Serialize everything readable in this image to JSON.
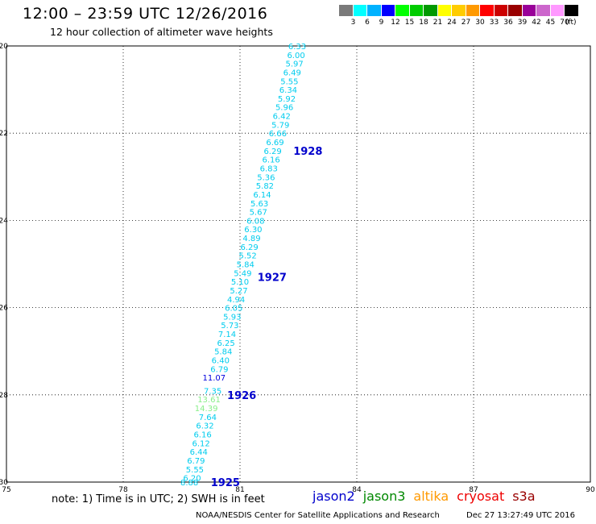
{
  "header": {
    "title": "12:00 – 23:59 UTC 12/26/2016",
    "subtitle": "12 hour collection of altimeter wave heights"
  },
  "colorbar": {
    "colors": [
      "#7a7a7a",
      "#00ffff",
      "#00b2ff",
      "#0000ff",
      "#00ff00",
      "#00cc00",
      "#009900",
      "#ffff00",
      "#ffcc00",
      "#ff9900",
      "#ff0000",
      "#cc0000",
      "#990000",
      "#990099",
      "#cc66cc",
      "#ff99ff",
      "#000000"
    ],
    "labels": [
      "3",
      "6",
      "9",
      "12",
      "15",
      "18",
      "21",
      "24",
      "27",
      "30",
      "33",
      "36",
      "39",
      "42",
      "45",
      "70"
    ],
    "unit": "(ft)"
  },
  "chart_data": {
    "type": "scatter",
    "xlim": [
      75,
      90
    ],
    "ylim": [
      -30,
      -20
    ],
    "x_ticks": [
      "75",
      "78",
      "81",
      "84",
      "87",
      "90"
    ],
    "y_ticks": [
      "-20",
      "-22",
      "-24",
      "-26",
      "-28",
      "-30"
    ],
    "grid": true,
    "points": [
      {
        "x": 82.7,
        "y": -20.0,
        "label": "6.33",
        "color": "#00ccee"
      },
      {
        "x": 82.67,
        "y": -20.2,
        "label": "6.00",
        "color": "#00ccee"
      },
      {
        "x": 82.63,
        "y": -20.4,
        "label": "5.97",
        "color": "#00ccee"
      },
      {
        "x": 82.57,
        "y": -20.6,
        "label": "6.49",
        "color": "#00ccee"
      },
      {
        "x": 82.5,
        "y": -20.8,
        "label": "5.55",
        "color": "#00ccee"
      },
      {
        "x": 82.47,
        "y": -21.0,
        "label": "6.34",
        "color": "#00ccee"
      },
      {
        "x": 82.43,
        "y": -21.2,
        "label": "5.92",
        "color": "#00ccee"
      },
      {
        "x": 82.37,
        "y": -21.4,
        "label": "5.96",
        "color": "#00ccee"
      },
      {
        "x": 82.3,
        "y": -21.6,
        "label": "6.42",
        "color": "#00ccee"
      },
      {
        "x": 82.27,
        "y": -21.8,
        "label": "5.79",
        "color": "#00ccee"
      },
      {
        "x": 82.2,
        "y": -22.0,
        "label": "6.66",
        "color": "#00ccee"
      },
      {
        "x": 82.13,
        "y": -22.2,
        "label": "6.69",
        "color": "#00ccee"
      },
      {
        "x": 82.07,
        "y": -22.4,
        "label": "6.29",
        "color": "#00ccee"
      },
      {
        "x": 82.03,
        "y": -22.6,
        "label": "6.16",
        "color": "#00ccee"
      },
      {
        "x": 81.97,
        "y": -22.8,
        "label": "6.83",
        "color": "#00ccee"
      },
      {
        "x": 81.9,
        "y": -23.0,
        "label": "5.36",
        "color": "#00ccee"
      },
      {
        "x": 81.87,
        "y": -23.2,
        "label": "5.82",
        "color": "#00ccee"
      },
      {
        "x": 81.8,
        "y": -23.4,
        "label": "6.14",
        "color": "#00ccee"
      },
      {
        "x": 81.73,
        "y": -23.6,
        "label": "5.63",
        "color": "#00ccee"
      },
      {
        "x": 81.7,
        "y": -23.8,
        "label": "5.67",
        "color": "#00ccee"
      },
      {
        "x": 81.63,
        "y": -24.0,
        "label": "6.08",
        "color": "#00ccee"
      },
      {
        "x": 81.57,
        "y": -24.2,
        "label": "6.30",
        "color": "#00ccee"
      },
      {
        "x": 81.53,
        "y": -24.4,
        "label": "4.89",
        "color": "#00ccee"
      },
      {
        "x": 81.47,
        "y": -24.6,
        "label": "6.29",
        "color": "#00ccee"
      },
      {
        "x": 81.43,
        "y": -24.8,
        "label": "5.52",
        "color": "#00ccee"
      },
      {
        "x": 81.37,
        "y": -25.0,
        "label": "5.84",
        "color": "#00ccee"
      },
      {
        "x": 81.3,
        "y": -25.2,
        "label": "5.49",
        "color": "#00ccee"
      },
      {
        "x": 81.23,
        "y": -25.4,
        "label": "5.10",
        "color": "#00ccee"
      },
      {
        "x": 81.2,
        "y": -25.6,
        "label": "5.27",
        "color": "#00ccee"
      },
      {
        "x": 81.13,
        "y": -25.8,
        "label": "4.94",
        "color": "#00ccee"
      },
      {
        "x": 81.07,
        "y": -26.0,
        "label": "6.05",
        "color": "#00ccee"
      },
      {
        "x": 81.03,
        "y": -26.2,
        "label": "5.93",
        "color": "#00ccee"
      },
      {
        "x": 80.97,
        "y": -26.4,
        "label": "5.73",
        "color": "#00ccee"
      },
      {
        "x": 80.9,
        "y": -26.6,
        "label": "7.14",
        "color": "#00ccee"
      },
      {
        "x": 80.87,
        "y": -26.8,
        "label": "6.25",
        "color": "#00ccee"
      },
      {
        "x": 80.8,
        "y": -27.0,
        "label": "5.84",
        "color": "#00ccee"
      },
      {
        "x": 80.73,
        "y": -27.2,
        "label": "6.40",
        "color": "#00ccee"
      },
      {
        "x": 80.7,
        "y": -27.4,
        "label": "6.79",
        "color": "#00ccee"
      },
      {
        "x": 80.63,
        "y": -27.6,
        "label": "11.07",
        "color": "#0000dd"
      },
      {
        "x": 80.53,
        "y": -27.9,
        "label": "7.35",
        "color": "#00ccee"
      },
      {
        "x": 80.5,
        "y": -28.1,
        "label": "13.61",
        "color": "#88ee88"
      },
      {
        "x": 80.43,
        "y": -28.3,
        "label": "14.39",
        "color": "#88ee88"
      },
      {
        "x": 80.4,
        "y": -28.5,
        "label": "7.64",
        "color": "#00ccee"
      },
      {
        "x": 80.33,
        "y": -28.7,
        "label": "6.32",
        "color": "#00ccee"
      },
      {
        "x": 80.27,
        "y": -28.9,
        "label": "6.16",
        "color": "#00ccee"
      },
      {
        "x": 80.23,
        "y": -29.1,
        "label": "6.12",
        "color": "#00ccee"
      },
      {
        "x": 80.17,
        "y": -29.3,
        "label": "6.44",
        "color": "#00ccee"
      },
      {
        "x": 80.1,
        "y": -29.5,
        "label": "6.79",
        "color": "#00ccee"
      },
      {
        "x": 80.07,
        "y": -29.7,
        "label": "5.55",
        "color": "#00ccee"
      },
      {
        "x": 80.0,
        "y": -29.9,
        "label": "6.20",
        "color": "#00ccee"
      },
      {
        "x": 79.93,
        "y": -30.0,
        "label": "8.88",
        "color": "#00ccee"
      }
    ],
    "annotations": [
      {
        "x": 82.37,
        "y": -22.4,
        "text": "1928",
        "color": "#0000cc"
      },
      {
        "x": 81.45,
        "y": -25.3,
        "text": "1927",
        "color": "#0000cc"
      },
      {
        "x": 80.67,
        "y": -28.0,
        "text": "1926",
        "color": "#0000cc"
      },
      {
        "x": 80.25,
        "y": -30.0,
        "text": "1925",
        "color": "#0000cc"
      }
    ]
  },
  "note": "note: 1) Time is in UTC; 2) SWH is in feet",
  "legend": [
    {
      "label": "jason2",
      "color": "#0000cc"
    },
    {
      "label": "jason3",
      "color": "#008800"
    },
    {
      "label": "altika",
      "color": "#ff9900"
    },
    {
      "label": "cryosat",
      "color": "#ee0000"
    },
    {
      "label": "s3a",
      "color": "#990000"
    }
  ],
  "footer": {
    "left": "NOAA/NESDIS Center for Satellite Applications and Research",
    "right": "Dec 27 13:27:49 UTC 2016"
  }
}
